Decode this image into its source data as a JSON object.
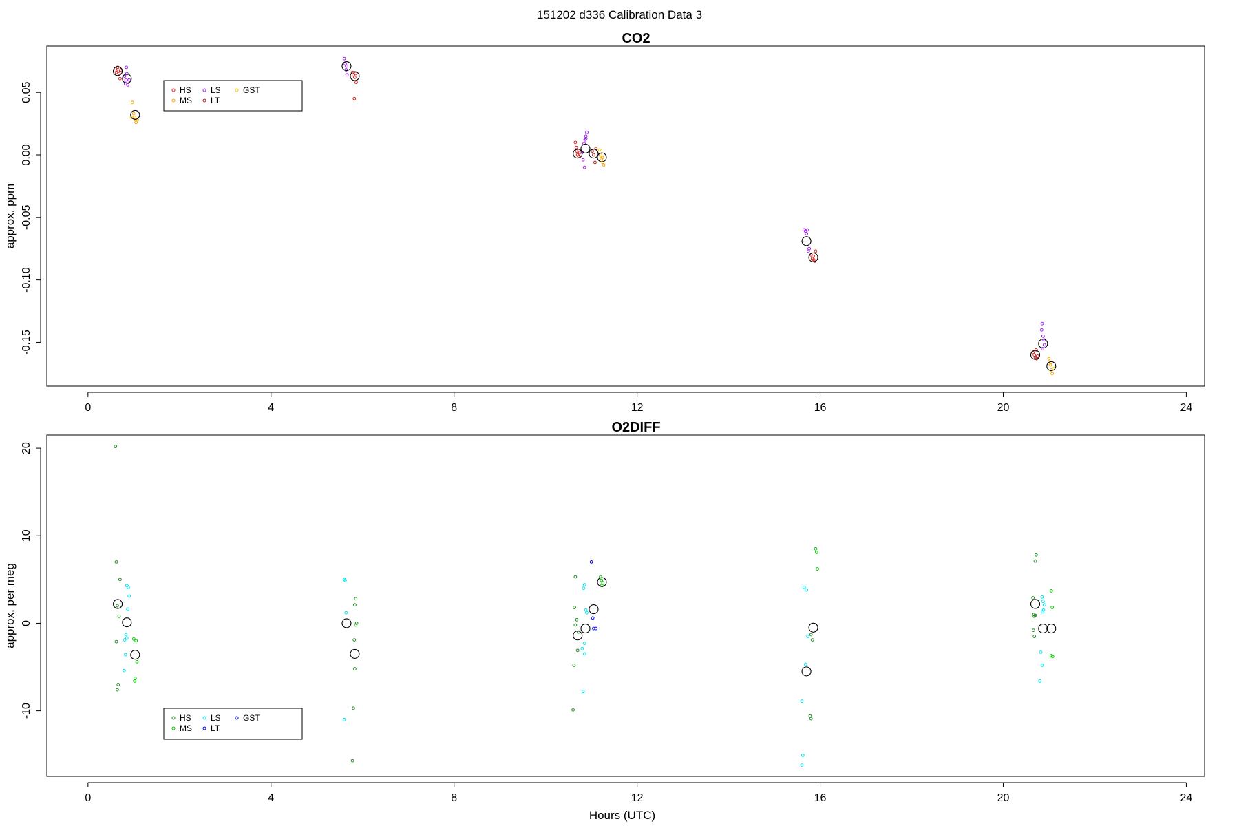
{
  "figure": {
    "suptitle": "151202   d336   Calibration Data 3",
    "xlabel": "Hours (UTC)"
  },
  "chart_data": [
    {
      "id": "co2",
      "type": "scatter",
      "title": "CO2",
      "xlabel": "",
      "ylabel": "approx. ppm",
      "xlim": [
        -0.9,
        24.4
      ],
      "ylim": [
        -0.185,
        0.087
      ],
      "xticks": [
        0,
        4,
        8,
        12,
        16,
        20,
        24
      ],
      "yticks": [
        0.05,
        0.0,
        -0.05,
        -0.1,
        -0.15
      ],
      "ytick_labels": [
        "0.05",
        "0.00",
        "-0.05",
        "-0.10",
        "-0.15"
      ],
      "grid": false,
      "legend": {
        "placement": "top-left",
        "entries": [
          {
            "label": "HS",
            "color": "#dd2222"
          },
          {
            "label": "MS",
            "color": "#ffa500"
          },
          {
            "label": "LS",
            "color": "#a020f0"
          },
          {
            "label": "LT",
            "color": "#b22222"
          },
          {
            "label": "GST",
            "color": "#eecc00"
          }
        ]
      },
      "series": [
        {
          "name": "HS",
          "color": "#dd2222",
          "points": [
            [
              0.6,
              0.069
            ],
            [
              0.62,
              0.066
            ],
            [
              0.65,
              0.07
            ],
            [
              0.66,
              0.067
            ],
            [
              0.68,
              0.065
            ],
            [
              0.7,
              0.061
            ],
            [
              0.72,
              0.068
            ],
            [
              5.78,
              0.066
            ],
            [
              5.8,
              0.064
            ],
            [
              5.83,
              0.062
            ],
            [
              5.85,
              0.065
            ],
            [
              5.82,
              0.045
            ],
            [
              5.86,
              0.058
            ],
            [
              10.65,
              0.01
            ],
            [
              10.68,
              0.003
            ],
            [
              10.7,
              0.0
            ],
            [
              10.72,
              -0.001
            ],
            [
              10.75,
              0.002
            ],
            [
              10.67,
              0.006
            ],
            [
              15.8,
              -0.08
            ],
            [
              15.83,
              -0.083
            ],
            [
              15.85,
              -0.081
            ],
            [
              15.88,
              -0.085
            ],
            [
              15.9,
              -0.077
            ],
            [
              15.86,
              -0.084
            ],
            [
              20.65,
              -0.158
            ],
            [
              20.68,
              -0.16
            ],
            [
              20.7,
              -0.162
            ],
            [
              20.72,
              -0.156
            ],
            [
              20.75,
              -0.161
            ],
            [
              20.73,
              -0.163
            ]
          ]
        },
        {
          "name": "MS",
          "color": "#ffa500",
          "points": [
            [
              0.97,
              0.042
            ],
            [
              1.0,
              0.033
            ],
            [
              1.02,
              0.03
            ],
            [
              1.04,
              0.028
            ],
            [
              1.05,
              0.026
            ],
            [
              11.2,
              0.0
            ],
            [
              11.22,
              -0.003
            ],
            [
              11.25,
              -0.006
            ],
            [
              11.27,
              -0.008
            ],
            [
              11.24,
              -0.002
            ],
            [
              21.0,
              -0.163
            ],
            [
              21.03,
              -0.168
            ],
            [
              21.05,
              -0.172
            ],
            [
              21.07,
              -0.175
            ],
            [
              21.04,
              -0.166
            ]
          ]
        },
        {
          "name": "LS",
          "color": "#a020f0",
          "points": [
            [
              0.8,
              0.063
            ],
            [
              0.82,
              0.057
            ],
            [
              0.83,
              0.06
            ],
            [
              0.85,
              0.065
            ],
            [
              0.87,
              0.056
            ],
            [
              0.9,
              0.06
            ],
            [
              0.84,
              0.07
            ],
            [
              5.6,
              0.077
            ],
            [
              5.62,
              0.073
            ],
            [
              5.64,
              0.068
            ],
            [
              5.65,
              0.071
            ],
            [
              5.66,
              0.064
            ],
            [
              10.8,
              0.002
            ],
            [
              10.82,
              -0.004
            ],
            [
              10.84,
              0.009
            ],
            [
              10.86,
              0.012
            ],
            [
              10.88,
              0.015
            ],
            [
              10.9,
              0.018
            ],
            [
              10.85,
              -0.01
            ],
            [
              10.88,
              0.013
            ],
            [
              15.65,
              -0.06
            ],
            [
              15.68,
              -0.061
            ],
            [
              15.7,
              -0.063
            ],
            [
              15.72,
              -0.06
            ],
            [
              15.74,
              -0.077
            ],
            [
              15.76,
              -0.075
            ],
            [
              20.85,
              -0.135
            ],
            [
              20.87,
              -0.145
            ],
            [
              20.89,
              -0.148
            ],
            [
              20.9,
              -0.152
            ],
            [
              20.86,
              -0.155
            ],
            [
              20.84,
              -0.14
            ]
          ]
        },
        {
          "name": "LT",
          "color": "#b22222",
          "points": [
            [
              11.05,
              0.0
            ],
            [
              11.08,
              -0.006
            ],
            [
              11.1,
              0.005
            ],
            [
              11.02,
              0.003
            ]
          ]
        },
        {
          "name": "GST",
          "color": "#eecc00",
          "points": [
            [
              0.95,
              0.03
            ],
            [
              1.08,
              0.028
            ],
            [
              11.18,
              0.004
            ],
            [
              21.1,
              -0.171
            ]
          ]
        },
        {
          "name": "mean",
          "color": "#000000",
          "large": true,
          "points": [
            [
              0.65,
              0.067
            ],
            [
              0.85,
              0.061
            ],
            [
              1.03,
              0.032
            ],
            [
              5.65,
              0.071
            ],
            [
              5.83,
              0.063
            ],
            [
              10.7,
              0.001
            ],
            [
              10.87,
              0.005
            ],
            [
              11.05,
              0.001
            ],
            [
              11.23,
              -0.002
            ],
            [
              15.7,
              -0.069
            ],
            [
              15.85,
              -0.082
            ],
            [
              20.7,
              -0.16
            ],
            [
              20.87,
              -0.151
            ],
            [
              21.05,
              -0.169
            ]
          ]
        }
      ]
    },
    {
      "id": "o2diff",
      "type": "scatter",
      "title": "O2DIFF",
      "xlabel": "Hours (UTC)",
      "ylabel": "approx. per meg",
      "xlim": [
        -0.9,
        24.4
      ],
      "ylim": [
        -17.5,
        21.5
      ],
      "xticks": [
        0,
        4,
        8,
        12,
        16,
        20,
        24
      ],
      "yticks": [
        20,
        10,
        0,
        -10
      ],
      "ytick_labels": [
        "20",
        "10",
        "0",
        "-10"
      ],
      "grid": false,
      "legend": {
        "placement": "bottom-left",
        "entries": [
          {
            "label": "HS",
            "color": "#228b22"
          },
          {
            "label": "MS",
            "color": "#00cc00"
          },
          {
            "label": "LS",
            "color": "#00e5ee"
          },
          {
            "label": "LT",
            "color": "#0000ff"
          },
          {
            "label": "GST",
            "color": "#0000cd"
          }
        ]
      },
      "series": [
        {
          "name": "HS",
          "color": "#228b22",
          "points": [
            [
              0.6,
              20.2
            ],
            [
              0.62,
              7.0
            ],
            [
              0.7,
              5.0
            ],
            [
              0.64,
              2.0
            ],
            [
              0.68,
              0.8
            ],
            [
              0.62,
              -2.1
            ],
            [
              0.66,
              -7.0
            ],
            [
              0.64,
              -7.6
            ],
            [
              5.85,
              2.8
            ],
            [
              5.83,
              2.1
            ],
            [
              5.87,
              0.0
            ],
            [
              5.85,
              -0.2
            ],
            [
              5.82,
              -1.9
            ],
            [
              5.83,
              -5.2
            ],
            [
              5.8,
              -9.7
            ],
            [
              5.78,
              -15.7
            ],
            [
              10.65,
              5.3
            ],
            [
              10.63,
              1.8
            ],
            [
              10.68,
              0.4
            ],
            [
              10.65,
              -0.2
            ],
            [
              10.72,
              -1.0
            ],
            [
              10.7,
              -3.1
            ],
            [
              10.62,
              -4.8
            ],
            [
              10.6,
              -9.9
            ],
            [
              15.8,
              -1.3
            ],
            [
              15.83,
              -1.9
            ],
            [
              15.78,
              -10.6
            ],
            [
              15.8,
              -10.9
            ],
            [
              20.65,
              2.9
            ],
            [
              20.67,
              1.0
            ],
            [
              20.68,
              0.8
            ],
            [
              20.7,
              0.9
            ],
            [
              20.66,
              -0.8
            ],
            [
              20.68,
              -1.5
            ],
            [
              20.72,
              7.8
            ],
            [
              20.7,
              7.1
            ]
          ]
        },
        {
          "name": "MS",
          "color": "#00cc00",
          "points": [
            [
              1.0,
              -1.8
            ],
            [
              1.05,
              -2.0
            ],
            [
              1.07,
              -4.4
            ],
            [
              1.03,
              -6.3
            ],
            [
              1.02,
              -6.6
            ],
            [
              11.2,
              5.3
            ],
            [
              11.22,
              4.9
            ],
            [
              11.25,
              4.6
            ],
            [
              11.23,
              4.3
            ],
            [
              15.9,
              8.5
            ],
            [
              15.92,
              8.1
            ],
            [
              15.94,
              6.2
            ],
            [
              21.05,
              3.7
            ],
            [
              21.07,
              1.8
            ],
            [
              21.05,
              -3.7
            ],
            [
              21.08,
              -3.8
            ]
          ]
        },
        {
          "name": "LS",
          "color": "#00e5ee",
          "points": [
            [
              0.85,
              4.3
            ],
            [
              0.88,
              4.1
            ],
            [
              0.9,
              3.1
            ],
            [
              0.87,
              1.6
            ],
            [
              0.83,
              -1.3
            ],
            [
              0.85,
              -1.7
            ],
            [
              0.8,
              -1.9
            ],
            [
              0.82,
              -3.6
            ],
            [
              0.79,
              -5.4
            ],
            [
              5.6,
              5.0
            ],
            [
              5.62,
              4.9
            ],
            [
              5.64,
              1.2
            ],
            [
              5.6,
              -11.0
            ],
            [
              10.85,
              4.4
            ],
            [
              10.83,
              4.0
            ],
            [
              10.88,
              1.5
            ],
            [
              10.9,
              1.2
            ],
            [
              10.85,
              -2.3
            ],
            [
              10.8,
              -2.9
            ],
            [
              10.85,
              -3.5
            ],
            [
              10.82,
              -7.8
            ],
            [
              15.65,
              4.1
            ],
            [
              15.7,
              3.8
            ],
            [
              15.73,
              -1.5
            ],
            [
              15.68,
              -4.7
            ],
            [
              15.6,
              -8.9
            ],
            [
              15.62,
              -15.1
            ],
            [
              15.6,
              -16.2
            ],
            [
              20.85,
              3.0
            ],
            [
              20.87,
              2.5
            ],
            [
              20.9,
              2.1
            ],
            [
              20.88,
              1.5
            ],
            [
              20.86,
              1.3
            ],
            [
              20.82,
              -3.3
            ],
            [
              20.85,
              -4.8
            ],
            [
              20.8,
              -6.6
            ]
          ]
        },
        {
          "name": "LT",
          "color": "#0000ff",
          "points": [
            [
              11.0,
              7.0
            ],
            [
              11.03,
              0.6
            ],
            [
              11.05,
              -0.6
            ],
            [
              11.1,
              -0.6
            ]
          ]
        },
        {
          "name": "mean",
          "color": "#000000",
          "large": true,
          "points": [
            [
              0.65,
              2.2
            ],
            [
              0.85,
              0.1
            ],
            [
              1.03,
              -3.6
            ],
            [
              5.65,
              0.0
            ],
            [
              5.83,
              -3.5
            ],
            [
              10.7,
              -1.4
            ],
            [
              10.87,
              -0.6
            ],
            [
              11.05,
              1.6
            ],
            [
              11.23,
              4.7
            ],
            [
              15.7,
              -5.5
            ],
            [
              15.85,
              -0.5
            ],
            [
              20.7,
              2.2
            ],
            [
              20.87,
              -0.6
            ],
            [
              21.05,
              -0.6
            ]
          ]
        }
      ]
    }
  ]
}
